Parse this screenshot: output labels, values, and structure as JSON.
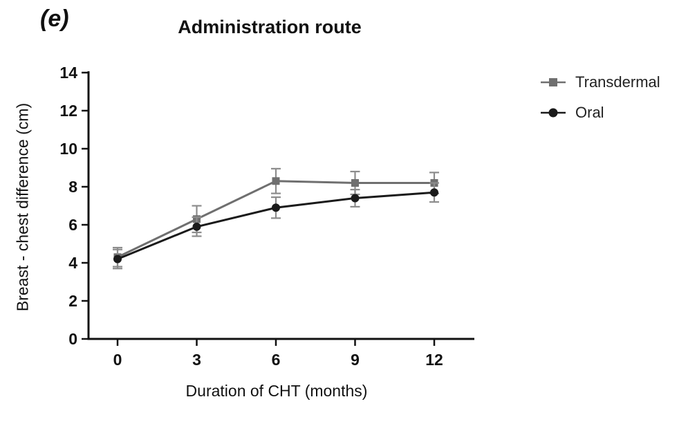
{
  "panel_label": "(e)",
  "title": "Administration route",
  "chart_data": {
    "type": "line",
    "title": "Administration route",
    "xlabel": "Duration of CHT (months)",
    "ylabel": "Breast - chest difference (cm)",
    "x": [
      0,
      3,
      6,
      9,
      12
    ],
    "xticks": [
      0,
      3,
      6,
      9,
      12
    ],
    "yticks": [
      0,
      2,
      4,
      6,
      8,
      10,
      12,
      14
    ],
    "ylim": [
      0,
      14
    ],
    "grid": false,
    "legend_position": "right",
    "series": [
      {
        "name": "Transdermal",
        "marker": "square",
        "color": "#6f6f6f",
        "error_color": "#8c8c8c",
        "values": [
          4.3,
          6.3,
          8.3,
          8.2,
          8.2
        ],
        "errors": [
          0.5,
          0.7,
          0.65,
          0.6,
          0.55
        ]
      },
      {
        "name": "Oral",
        "marker": "circle",
        "color": "#1a1a1a",
        "error_color": "#8c8c8c",
        "values": [
          4.2,
          5.9,
          6.9,
          7.4,
          7.7
        ],
        "errors": [
          0.5,
          0.5,
          0.55,
          0.45,
          0.5
        ]
      }
    ]
  }
}
